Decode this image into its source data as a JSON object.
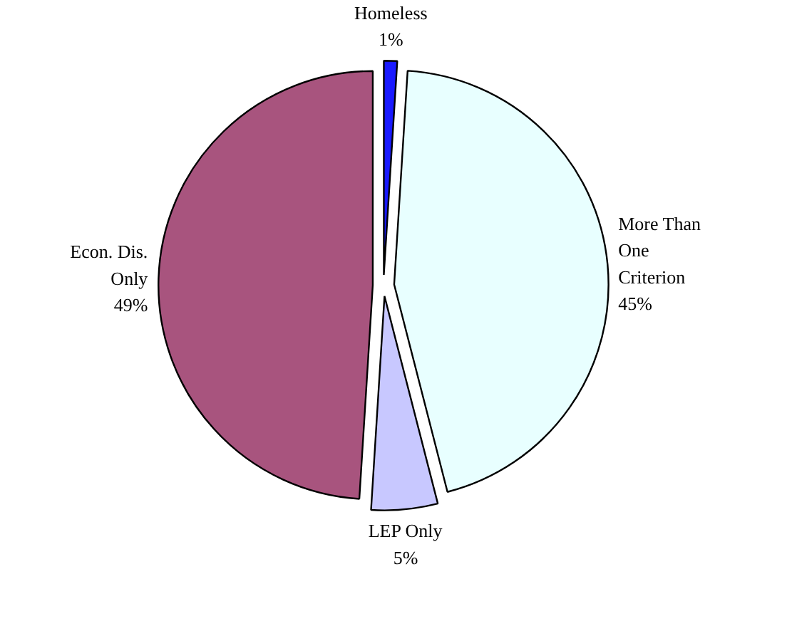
{
  "chart_data": {
    "type": "pie",
    "categories": [
      "Homeless",
      "More Than One Criterion",
      "LEP Only",
      "Econ. Dis. Only"
    ],
    "values": [
      1,
      45,
      5,
      49
    ],
    "colors": [
      "#1a1aff",
      "#e8ffff",
      "#c8c8ff",
      "#a8547e"
    ],
    "value_labels": [
      "1%",
      "45%",
      "5%",
      "49%"
    ]
  }
}
